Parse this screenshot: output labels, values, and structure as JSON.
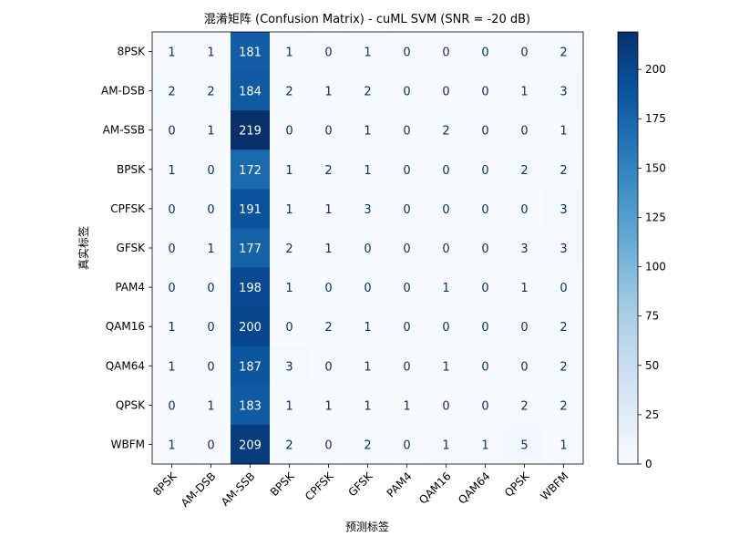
{
  "chart_data": {
    "type": "heatmap",
    "title": "混淆矩阵 (Confusion Matrix) - cuML SVM (SNR = -20 dB)",
    "xlabel": "预测标签",
    "ylabel": "真实标签",
    "x_categories": [
      "8PSK",
      "AM-DSB",
      "AM-SSB",
      "BPSK",
      "CPFSK",
      "GFSK",
      "PAM4",
      "QAM16",
      "QAM64",
      "QPSK",
      "WBFM"
    ],
    "y_categories": [
      "8PSK",
      "AM-DSB",
      "AM-SSB",
      "BPSK",
      "CPFSK",
      "GFSK",
      "PAM4",
      "QAM16",
      "QAM64",
      "QPSK",
      "WBFM"
    ],
    "matrix": [
      [
        1,
        1,
        181,
        1,
        0,
        1,
        0,
        0,
        0,
        0,
        2
      ],
      [
        2,
        2,
        184,
        2,
        1,
        2,
        0,
        0,
        0,
        1,
        3
      ],
      [
        0,
        1,
        219,
        0,
        0,
        1,
        0,
        2,
        0,
        0,
        1
      ],
      [
        1,
        0,
        172,
        1,
        2,
        1,
        0,
        0,
        0,
        2,
        2
      ],
      [
        0,
        0,
        191,
        1,
        1,
        3,
        0,
        0,
        0,
        0,
        3
      ],
      [
        0,
        1,
        177,
        2,
        1,
        0,
        0,
        0,
        0,
        3,
        3
      ],
      [
        0,
        0,
        198,
        1,
        0,
        0,
        0,
        1,
        0,
        1,
        0
      ],
      [
        1,
        0,
        200,
        0,
        2,
        1,
        0,
        0,
        0,
        0,
        2
      ],
      [
        1,
        0,
        187,
        3,
        0,
        1,
        0,
        1,
        0,
        0,
        2
      ],
      [
        0,
        1,
        183,
        1,
        1,
        1,
        1,
        0,
        0,
        2,
        2
      ],
      [
        1,
        0,
        209,
        2,
        0,
        2,
        0,
        1,
        1,
        5,
        1
      ]
    ],
    "colormap": "Blues",
    "colorbar": {
      "range": [
        0,
        219
      ],
      "ticks": [
        0,
        25,
        50,
        75,
        100,
        125,
        150,
        175,
        200
      ]
    }
  }
}
